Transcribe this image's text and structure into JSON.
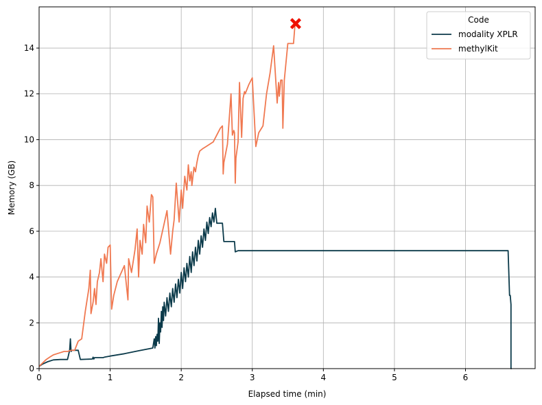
{
  "chart_data": {
    "type": "line",
    "xlabel": "Elapsed time (min)",
    "ylabel": "Memory (GB)",
    "xlim": [
      0,
      6.98
    ],
    "ylim": [
      0,
      15.8
    ],
    "xticks": [
      0,
      1,
      2,
      3,
      4,
      5,
      6
    ],
    "yticks": [
      0,
      2,
      4,
      6,
      8,
      10,
      12,
      14
    ],
    "grid": true,
    "legend": {
      "title": "Code",
      "placement": "top-right"
    },
    "series": [
      {
        "name": "modality XPLR",
        "color": "#0b3a4a",
        "x": [
          0,
          0.05,
          0.12,
          0.2,
          0.3,
          0.4,
          0.43,
          0.44,
          0.45,
          0.46,
          0.55,
          0.58,
          0.75,
          0.76,
          0.77,
          0.78,
          0.9,
          0.92,
          1.0,
          1.2,
          1.4,
          1.6,
          1.62,
          1.63,
          1.64,
          1.65,
          1.66,
          1.67,
          1.68,
          1.69,
          1.7,
          1.71,
          1.72,
          1.73,
          1.74,
          1.75,
          1.76,
          1.78,
          1.8,
          1.82,
          1.84,
          1.86,
          1.88,
          1.9,
          1.92,
          1.94,
          1.96,
          1.98,
          2.0,
          2.02,
          2.04,
          2.06,
          2.08,
          2.1,
          2.12,
          2.14,
          2.16,
          2.18,
          2.2,
          2.22,
          2.24,
          2.26,
          2.28,
          2.3,
          2.32,
          2.34,
          2.36,
          2.38,
          2.4,
          2.42,
          2.44,
          2.46,
          2.48,
          2.5,
          2.58,
          2.6,
          2.62,
          2.75,
          2.76,
          2.8,
          3.5,
          4.5,
          5.5,
          6.6,
          6.62,
          6.63,
          6.64,
          6.64,
          6.65
        ],
        "y": [
          0.1,
          0.2,
          0.3,
          0.38,
          0.4,
          0.4,
          0.8,
          1.3,
          0.75,
          0.8,
          0.8,
          0.4,
          0.42,
          0.5,
          0.42,
          0.48,
          0.48,
          0.5,
          0.55,
          0.65,
          0.78,
          0.9,
          1.3,
          0.9,
          1.4,
          1.0,
          1.5,
          1.2,
          2.2,
          1.1,
          2.0,
          1.6,
          2.5,
          1.8,
          2.7,
          2.1,
          2.9,
          2.3,
          3.1,
          2.5,
          3.3,
          2.7,
          3.5,
          2.9,
          3.7,
          3.1,
          3.9,
          3.3,
          4.2,
          3.5,
          4.4,
          3.8,
          4.6,
          4.0,
          4.9,
          4.2,
          5.1,
          4.5,
          5.3,
          4.7,
          5.6,
          5.0,
          5.8,
          5.3,
          6.1,
          5.6,
          6.4,
          5.9,
          6.6,
          6.2,
          6.8,
          6.4,
          7.0,
          6.35,
          6.35,
          5.55,
          5.55,
          5.55,
          5.1,
          5.15,
          5.15,
          5.15,
          5.15,
          5.15,
          3.2,
          3.2,
          2.8,
          0,
          0
        ]
      },
      {
        "name": "methylKit",
        "color": "#f07850",
        "x": [
          0,
          0.05,
          0.1,
          0.15,
          0.2,
          0.25,
          0.3,
          0.35,
          0.4,
          0.45,
          0.5,
          0.55,
          0.6,
          0.65,
          0.7,
          0.72,
          0.73,
          0.76,
          0.78,
          0.8,
          0.82,
          0.85,
          0.87,
          0.9,
          0.92,
          0.95,
          0.97,
          1.0,
          1.02,
          1.05,
          1.1,
          1.2,
          1.25,
          1.26,
          1.3,
          1.35,
          1.38,
          1.4,
          1.42,
          1.45,
          1.47,
          1.5,
          1.52,
          1.55,
          1.58,
          1.6,
          1.62,
          1.65,
          1.7,
          1.75,
          1.8,
          1.85,
          1.88,
          1.9,
          1.93,
          1.97,
          2.0,
          2.02,
          2.05,
          2.08,
          2.1,
          2.12,
          2.14,
          2.15,
          2.18,
          2.2,
          2.22,
          2.24,
          2.26,
          2.3,
          2.35,
          2.45,
          2.55,
          2.58,
          2.59,
          2.6,
          2.65,
          2.7,
          2.72,
          2.74,
          2.75,
          2.76,
          2.77,
          2.8,
          2.82,
          2.85,
          2.87,
          2.89,
          2.9,
          2.95,
          3.0,
          3.05,
          3.07,
          3.09,
          3.15,
          3.2,
          3.25,
          3.3,
          3.35,
          3.37,
          3.38,
          3.4,
          3.42,
          3.43,
          3.45,
          3.5,
          3.52,
          3.58,
          3.6,
          3.62
        ],
        "y": [
          0.1,
          0.25,
          0.4,
          0.5,
          0.6,
          0.65,
          0.7,
          0.75,
          0.75,
          0.8,
          0.8,
          1.2,
          1.3,
          2.5,
          3.5,
          4.3,
          2.4,
          2.9,
          3.5,
          2.8,
          3.8,
          4.2,
          4.8,
          3.8,
          5.0,
          4.6,
          5.3,
          5.4,
          2.6,
          3.2,
          3.8,
          4.5,
          3.0,
          4.8,
          4.2,
          5.2,
          6.1,
          4.0,
          5.6,
          5.0,
          6.3,
          5.5,
          7.1,
          6.4,
          7.6,
          7.5,
          4.6,
          5.0,
          5.5,
          6.2,
          6.9,
          5.0,
          6.0,
          6.5,
          8.1,
          6.4,
          7.8,
          7.0,
          8.4,
          7.8,
          8.9,
          8.2,
          8.6,
          8.0,
          8.8,
          8.6,
          9.0,
          9.3,
          9.5,
          9.6,
          9.7,
          9.9,
          10.5,
          10.6,
          8.5,
          9.0,
          9.8,
          12.0,
          10.2,
          10.4,
          10.3,
          8.1,
          9.2,
          9.9,
          12.5,
          10.1,
          11.8,
          12.1,
          12.0,
          12.4,
          12.7,
          9.7,
          10.0,
          10.3,
          10.6,
          12.0,
          12.9,
          14.1,
          11.6,
          12.5,
          11.9,
          12.6,
          12.6,
          10.5,
          12.6,
          14.2,
          14.2,
          14.2,
          15.0,
          15.1
        ]
      }
    ],
    "annotations": [
      {
        "type": "marker",
        "symbol": "X",
        "x": 3.61,
        "y": 15.07,
        "color": "#ee1100"
      }
    ]
  }
}
